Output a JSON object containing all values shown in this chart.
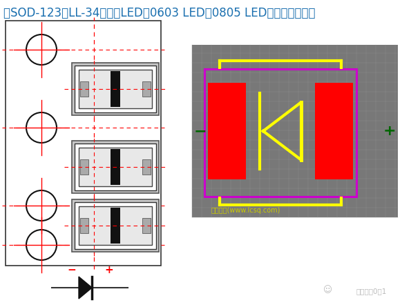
{
  "title": "例SOD-123、LL-34、贴片LED（0603 LED、0805 LED）等等的二极管",
  "title_color": "#1a6faf",
  "bg_color": "#ffffff",
  "crosshair_color": "#ff0000",
  "circle_color": "#111111",
  "red_pad_color": "#ff0000",
  "yellow_color": "#ffff00",
  "magenta_color": "#cc00cc",
  "green_color": "#006600",
  "watermark": "立创论坛(www.lcsq.com)",
  "watermark_color": "#cccc00",
  "bottom_text": "嵌入式从0到1",
  "bottom_text_color": "#bbbbbb",
  "grid_color": "#909090",
  "panel_bg": "#787878"
}
